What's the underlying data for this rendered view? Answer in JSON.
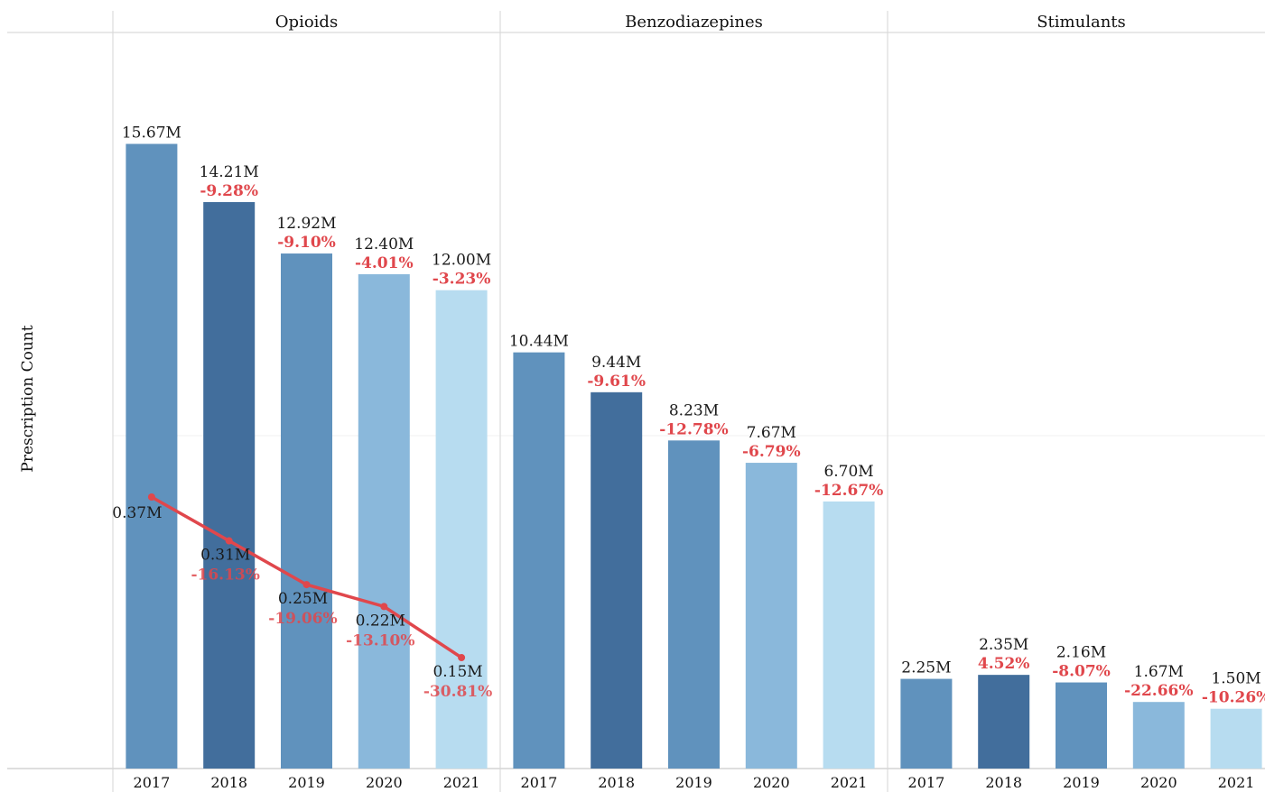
{
  "chart_data": {
    "type": "bar",
    "ylabel": "Prescription Count",
    "categories": [
      "2017",
      "2018",
      "2019",
      "2020",
      "2021"
    ],
    "colors": [
      "#6092bd",
      "#426e9c",
      "#6092bd",
      "#8ab8db",
      "#b7dcf0"
    ],
    "line_color": "#e0474c",
    "pct_color": "#e0474c",
    "ylim": [
      0,
      16700000
    ],
    "gridline": 8350000,
    "panels": [
      {
        "title": "Opioids",
        "values": [
          15670000,
          14210000,
          12920000,
          12400000,
          12000000
        ],
        "value_labels": [
          "15.67M",
          "14.21M",
          "12.92M",
          "12.40M",
          "12.00M"
        ],
        "pct_labels": [
          "",
          "-9.28%",
          "-9.10%",
          "-4.01%",
          "-3.23%"
        ],
        "line_series": {
          "values": [
            370000,
            310000,
            250000,
            220000,
            150000
          ],
          "value_labels": [
            "0.37M",
            "0.31M",
            "0.25M",
            "0.22M",
            "0.15M"
          ],
          "pct_labels": [
            "",
            "-16.13%",
            "-19.06%",
            "-13.10%",
            "-30.81%"
          ]
        }
      },
      {
        "title": "Benzodiazepines",
        "values": [
          10440000,
          9440000,
          8230000,
          7670000,
          6700000
        ],
        "value_labels": [
          "10.44M",
          "9.44M",
          "8.23M",
          "7.67M",
          "6.70M"
        ],
        "pct_labels": [
          "",
          "-9.61%",
          "-12.78%",
          "-6.79%",
          "-12.67%"
        ]
      },
      {
        "title": "Stimulants",
        "values": [
          2250000,
          2350000,
          2160000,
          1670000,
          1500000
        ],
        "value_labels": [
          "2.25M",
          "2.35M",
          "2.16M",
          "1.67M",
          "1.50M"
        ],
        "pct_labels": [
          "",
          "4.52%",
          "-8.07%",
          "-22.66%",
          "-10.26%"
        ]
      }
    ]
  }
}
